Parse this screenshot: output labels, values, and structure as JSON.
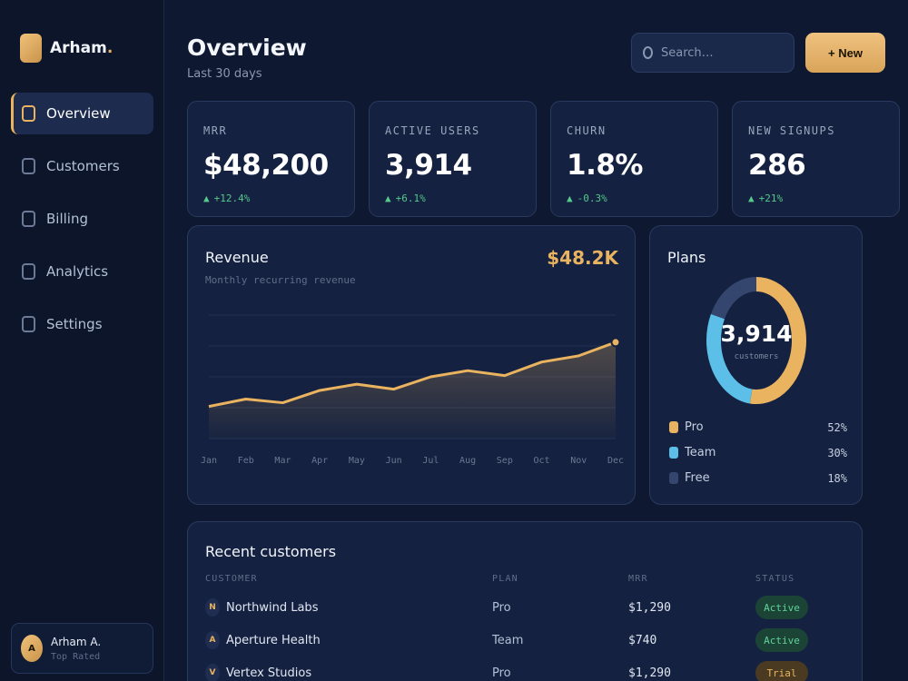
{
  "brand": {
    "name": "Arham",
    "dot": "."
  },
  "nav": [
    {
      "label": "Overview",
      "icon": "square-icon",
      "active": true
    },
    {
      "label": "Customers",
      "icon": "square-icon",
      "active": false
    },
    {
      "label": "Billing",
      "icon": "square-icon",
      "active": false
    },
    {
      "label": "Analytics",
      "icon": "square-icon",
      "active": false
    },
    {
      "label": "Settings",
      "icon": "square-icon",
      "active": false
    }
  ],
  "user": {
    "initial": "A",
    "name": "Arham A.",
    "role": "Top Rated"
  },
  "header": {
    "title": "Overview",
    "subtitle": "Last 30 days"
  },
  "search": {
    "placeholder": "Search…"
  },
  "new_button": "+ New",
  "kpis": [
    {
      "label": "MRR",
      "value": "$48,200",
      "arrow": "▲",
      "delta": "+12.4%"
    },
    {
      "label": "ACTIVE USERS",
      "value": "3,914",
      "arrow": "▲",
      "delta": "+6.1%"
    },
    {
      "label": "CHURN",
      "value": "1.8%",
      "arrow": "▲",
      "delta": "-0.3%"
    },
    {
      "label": "NEW SIGNUPS",
      "value": "286",
      "arrow": "▲",
      "delta": "+21%"
    }
  ],
  "revenue": {
    "title": "Revenue",
    "subtitle": "Monthly recurring revenue",
    "total": "$48.2K"
  },
  "plans": {
    "title": "Plans",
    "center_value": "3,914",
    "center_label": "customers",
    "items": [
      {
        "label": "Pro",
        "pct": "52%",
        "value": 52,
        "color": "#e9b35f"
      },
      {
        "label": "Team",
        "pct": "30%",
        "value": 30,
        "color": "#5bbfe8"
      },
      {
        "label": "Free",
        "pct": "18%",
        "value": 18,
        "color": "#34466e"
      }
    ]
  },
  "customers": {
    "title": "Recent customers",
    "columns": [
      "CUSTOMER",
      "PLAN",
      "MRR",
      "STATUS"
    ],
    "rows": [
      {
        "initial": "N",
        "name": "Northwind Labs",
        "plan": "Pro",
        "mrr": "$1,290",
        "status": "Active",
        "status_kind": "active"
      },
      {
        "initial": "A",
        "name": "Aperture Health",
        "plan": "Team",
        "mrr": "$740",
        "status": "Active",
        "status_kind": "active"
      },
      {
        "initial": "V",
        "name": "Vertex Studios",
        "plan": "Pro",
        "mrr": "$1,290",
        "status": "Trial",
        "status_kind": "trial"
      }
    ]
  },
  "colors": {
    "accent": "#e9b35f",
    "positive": "#56c98c",
    "panel": "#142140",
    "background": "#0e1830"
  },
  "chart_data": {
    "type": "area",
    "categories": [
      "Jan",
      "Feb",
      "Mar",
      "Apr",
      "May",
      "Jun",
      "Jul",
      "Aug",
      "Sep",
      "Oct",
      "Nov",
      "Dec"
    ],
    "values": [
      0.26,
      0.32,
      0.29,
      0.39,
      0.44,
      0.4,
      0.5,
      0.55,
      0.51,
      0.62,
      0.67,
      0.78
    ],
    "ylim": [
      0,
      1
    ],
    "y_units": "relative, no y-axis printed",
    "grid": "horizontal",
    "title": "Revenue",
    "subtitle": "Monthly recurring revenue",
    "line_color": "#e9b35f",
    "end_marker": true
  }
}
